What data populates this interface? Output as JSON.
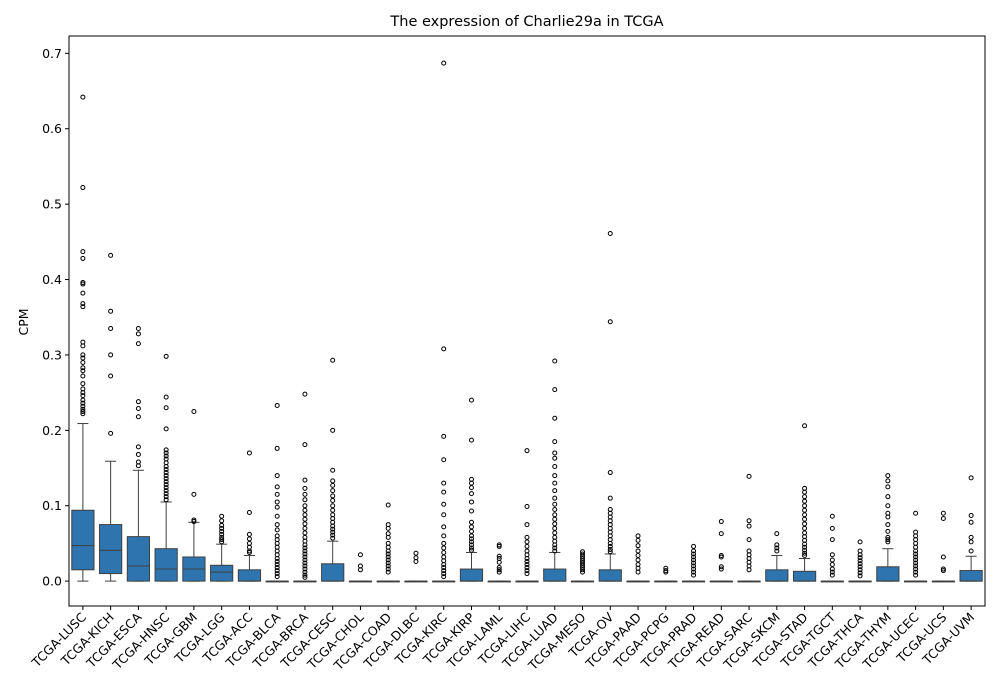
{
  "chart_data": {
    "type": "box",
    "title": "The expression of Charlie29a in TCGA",
    "xlabel": "",
    "ylabel": "CPM",
    "ylim": [
      -0.033,
      0.723
    ],
    "yticks": [
      0.0,
      0.1,
      0.2,
      0.3,
      0.4,
      0.5,
      0.6,
      0.7
    ],
    "grid": false,
    "box_color": "#2e75b0",
    "series": [
      {
        "name": "TCGA-LUSC",
        "q1": 0.015,
        "median": 0.047,
        "q3": 0.094,
        "whisker_low": 0.0,
        "whisker_high": 0.209,
        "outliers": [
          0.642,
          0.522,
          0.437,
          0.428,
          0.396,
          0.394,
          0.382,
          0.368,
          0.364,
          0.317,
          0.312,
          0.3,
          0.296,
          0.29,
          0.283,
          0.279,
          0.272,
          0.262,
          0.255,
          0.25,
          0.246,
          0.24,
          0.236,
          0.232,
          0.228,
          0.225,
          0.222
        ]
      },
      {
        "name": "TCGA-KICH",
        "q1": 0.01,
        "median": 0.041,
        "q3": 0.075,
        "whisker_low": 0.0,
        "whisker_high": 0.159,
        "outliers": [
          0.432,
          0.358,
          0.335,
          0.3,
          0.272,
          0.196
        ]
      },
      {
        "name": "TCGA-ESCA",
        "q1": 0.0,
        "median": 0.02,
        "q3": 0.059,
        "whisker_low": 0.0,
        "whisker_high": 0.147,
        "outliers": [
          0.335,
          0.328,
          0.315,
          0.238,
          0.229,
          0.218,
          0.178,
          0.168,
          0.158,
          0.153
        ]
      },
      {
        "name": "TCGA-HNSC",
        "q1": 0.0,
        "median": 0.016,
        "q3": 0.043,
        "whisker_low": 0.0,
        "whisker_high": 0.105,
        "outliers": [
          0.298,
          0.244,
          0.23,
          0.202,
          0.174,
          0.17,
          0.166,
          0.162,
          0.157,
          0.152,
          0.148,
          0.144,
          0.14,
          0.136,
          0.132,
          0.128,
          0.124,
          0.12,
          0.116,
          0.112,
          0.108
        ]
      },
      {
        "name": "TCGA-GBM",
        "q1": 0.0,
        "median": 0.016,
        "q3": 0.032,
        "whisker_low": 0.0,
        "whisker_high": 0.078,
        "outliers": [
          0.225,
          0.115,
          0.081,
          0.079
        ]
      },
      {
        "name": "TCGA-LGG",
        "q1": 0.0,
        "median": 0.012,
        "q3": 0.021,
        "whisker_low": 0.0,
        "whisker_high": 0.049,
        "outliers": [
          0.086,
          0.08,
          0.074,
          0.07,
          0.066,
          0.062,
          0.058,
          0.055,
          0.052
        ]
      },
      {
        "name": "TCGA-ACC",
        "q1": 0.0,
        "median": 0.0,
        "q3": 0.015,
        "whisker_low": 0.0,
        "whisker_high": 0.034,
        "outliers": [
          0.17,
          0.091,
          0.062,
          0.056,
          0.05,
          0.045,
          0.04,
          0.038
        ]
      },
      {
        "name": "TCGA-BLCA",
        "q1": 0.0,
        "median": 0.0,
        "q3": 0.0,
        "whisker_low": 0.0,
        "whisker_high": 0.0,
        "outliers": [
          0.233,
          0.176,
          0.14,
          0.125,
          0.115,
          0.105,
          0.098,
          0.086,
          0.075,
          0.068,
          0.06,
          0.055,
          0.05,
          0.045,
          0.04,
          0.035,
          0.03,
          0.026,
          0.022,
          0.018,
          0.014,
          0.01,
          0.006
        ]
      },
      {
        "name": "TCGA-BRCA",
        "q1": 0.0,
        "median": 0.0,
        "q3": 0.0,
        "whisker_low": 0.0,
        "whisker_high": 0.0,
        "outliers": [
          0.248,
          0.181,
          0.134,
          0.123,
          0.115,
          0.108,
          0.1,
          0.094,
          0.088,
          0.082,
          0.076,
          0.07,
          0.064,
          0.058,
          0.053,
          0.048,
          0.044,
          0.04,
          0.036,
          0.032,
          0.028,
          0.024,
          0.02,
          0.016,
          0.012,
          0.008,
          0.005
        ]
      },
      {
        "name": "TCGA-CESC",
        "q1": 0.0,
        "median": 0.0,
        "q3": 0.023,
        "whisker_low": 0.0,
        "whisker_high": 0.053,
        "outliers": [
          0.293,
          0.2,
          0.147,
          0.133,
          0.127,
          0.12,
          0.113,
          0.107,
          0.1,
          0.094,
          0.088,
          0.083,
          0.078,
          0.073,
          0.069,
          0.065,
          0.061,
          0.057
        ]
      },
      {
        "name": "TCGA-CHOL",
        "q1": 0.0,
        "median": 0.0,
        "q3": 0.0,
        "whisker_low": 0.0,
        "whisker_high": 0.0,
        "outliers": [
          0.035,
          0.02,
          0.015
        ]
      },
      {
        "name": "TCGA-COAD",
        "q1": 0.0,
        "median": 0.0,
        "q3": 0.0,
        "whisker_low": 0.0,
        "whisker_high": 0.0,
        "outliers": [
          0.101,
          0.075,
          0.07,
          0.063,
          0.058,
          0.05,
          0.045,
          0.04,
          0.036,
          0.032,
          0.028,
          0.024,
          0.02,
          0.016,
          0.012
        ]
      },
      {
        "name": "TCGA-DLBC",
        "q1": 0.0,
        "median": 0.0,
        "q3": 0.0,
        "whisker_low": 0.0,
        "whisker_high": 0.0,
        "outliers": [
          0.037,
          0.031,
          0.026
        ]
      },
      {
        "name": "TCGA-KIRC",
        "q1": 0.0,
        "median": 0.0,
        "q3": 0.0,
        "whisker_low": 0.0,
        "whisker_high": 0.0,
        "outliers": [
          0.687,
          0.308,
          0.192,
          0.161,
          0.13,
          0.118,
          0.102,
          0.088,
          0.072,
          0.06,
          0.05,
          0.044,
          0.038,
          0.032,
          0.027,
          0.022,
          0.018,
          0.014,
          0.01,
          0.006
        ]
      },
      {
        "name": "TCGA-KIRP",
        "q1": 0.0,
        "median": 0.0,
        "q3": 0.016,
        "whisker_low": 0.0,
        "whisker_high": 0.038,
        "outliers": [
          0.24,
          0.187,
          0.135,
          0.13,
          0.124,
          0.116,
          0.105,
          0.093,
          0.078,
          0.072,
          0.066,
          0.06,
          0.056,
          0.052,
          0.048,
          0.044,
          0.041
        ]
      },
      {
        "name": "TCGA-LAML",
        "q1": 0.0,
        "median": 0.0,
        "q3": 0.0,
        "whisker_low": 0.0,
        "whisker_high": 0.0,
        "outliers": [
          0.048,
          0.046,
          0.033,
          0.03,
          0.025,
          0.018,
          0.015,
          0.012
        ]
      },
      {
        "name": "TCGA-LIHC",
        "q1": 0.0,
        "median": 0.0,
        "q3": 0.0,
        "whisker_low": 0.0,
        "whisker_high": 0.0,
        "outliers": [
          0.173,
          0.099,
          0.075,
          0.058,
          0.052,
          0.046,
          0.04,
          0.035,
          0.03,
          0.026,
          0.022,
          0.018,
          0.014,
          0.01
        ]
      },
      {
        "name": "TCGA-LUAD",
        "q1": 0.0,
        "median": 0.0,
        "q3": 0.016,
        "whisker_low": 0.0,
        "whisker_high": 0.038,
        "outliers": [
          0.292,
          0.254,
          0.216,
          0.185,
          0.17,
          0.163,
          0.152,
          0.14,
          0.13,
          0.12,
          0.11,
          0.102,
          0.095,
          0.088,
          0.082,
          0.076,
          0.07,
          0.064,
          0.058,
          0.053,
          0.048,
          0.044,
          0.04
        ]
      },
      {
        "name": "TCGA-MESO",
        "q1": 0.0,
        "median": 0.0,
        "q3": 0.0,
        "whisker_low": 0.0,
        "whisker_high": 0.0,
        "outliers": [
          0.039,
          0.036,
          0.033,
          0.03,
          0.027,
          0.024,
          0.021,
          0.018,
          0.015,
          0.012
        ]
      },
      {
        "name": "TCGA-OV",
        "q1": 0.0,
        "median": 0.0,
        "q3": 0.015,
        "whisker_low": 0.0,
        "whisker_high": 0.036,
        "outliers": [
          0.461,
          0.344,
          0.144,
          0.11,
          0.095,
          0.09,
          0.085,
          0.08,
          0.075,
          0.07,
          0.065,
          0.06,
          0.055,
          0.05,
          0.046,
          0.042,
          0.039
        ]
      },
      {
        "name": "TCGA-PAAD",
        "q1": 0.0,
        "median": 0.0,
        "q3": 0.0,
        "whisker_low": 0.0,
        "whisker_high": 0.0,
        "outliers": [
          0.06,
          0.054,
          0.047,
          0.04,
          0.034,
          0.028,
          0.022,
          0.017,
          0.012
        ]
      },
      {
        "name": "TCGA-PCPG",
        "q1": 0.0,
        "median": 0.0,
        "q3": 0.0,
        "whisker_low": 0.0,
        "whisker_high": 0.0,
        "outliers": [
          0.017,
          0.014,
          0.012
        ]
      },
      {
        "name": "TCGA-PRAD",
        "q1": 0.0,
        "median": 0.0,
        "q3": 0.0,
        "whisker_low": 0.0,
        "whisker_high": 0.0,
        "outliers": [
          0.046,
          0.04,
          0.036,
          0.032,
          0.028,
          0.024,
          0.02,
          0.016,
          0.012,
          0.008
        ]
      },
      {
        "name": "TCGA-READ",
        "q1": 0.0,
        "median": 0.0,
        "q3": 0.0,
        "whisker_low": 0.0,
        "whisker_high": 0.0,
        "outliers": [
          0.079,
          0.063,
          0.034,
          0.032,
          0.019,
          0.016
        ]
      },
      {
        "name": "TCGA-SARC",
        "q1": 0.0,
        "median": 0.0,
        "q3": 0.0,
        "whisker_low": 0.0,
        "whisker_high": 0.0,
        "outliers": [
          0.139,
          0.08,
          0.073,
          0.055,
          0.04,
          0.035,
          0.03,
          0.025,
          0.02,
          0.015
        ]
      },
      {
        "name": "TCGA-SKCM",
        "q1": 0.0,
        "median": 0.0,
        "q3": 0.015,
        "whisker_low": 0.0,
        "whisker_high": 0.034,
        "outliers": [
          0.063,
          0.048,
          0.044,
          0.04
        ]
      },
      {
        "name": "TCGA-STAD",
        "q1": 0.0,
        "median": 0.0,
        "q3": 0.013,
        "whisker_low": 0.0,
        "whisker_high": 0.03,
        "outliers": [
          0.206,
          0.123,
          0.118,
          0.112,
          0.106,
          0.1,
          0.094,
          0.088,
          0.082,
          0.076,
          0.07,
          0.064,
          0.059,
          0.054,
          0.049,
          0.045,
          0.041,
          0.037,
          0.034
        ]
      },
      {
        "name": "TCGA-TGCT",
        "q1": 0.0,
        "median": 0.0,
        "q3": 0.0,
        "whisker_low": 0.0,
        "whisker_high": 0.0,
        "outliers": [
          0.086,
          0.07,
          0.055,
          0.035,
          0.028,
          0.022,
          0.016,
          0.012,
          0.008
        ]
      },
      {
        "name": "TCGA-THCA",
        "q1": 0.0,
        "median": 0.0,
        "q3": 0.0,
        "whisker_low": 0.0,
        "whisker_high": 0.0,
        "outliers": [
          0.052,
          0.04,
          0.035,
          0.031,
          0.027,
          0.023,
          0.019,
          0.015,
          0.011,
          0.007
        ]
      },
      {
        "name": "TCGA-THYM",
        "q1": 0.0,
        "median": 0.0,
        "q3": 0.019,
        "whisker_low": 0.0,
        "whisker_high": 0.043,
        "outliers": [
          0.14,
          0.133,
          0.125,
          0.112,
          0.1,
          0.09,
          0.085,
          0.075,
          0.066,
          0.058,
          0.055,
          0.052
        ]
      },
      {
        "name": "TCGA-UCEC",
        "q1": 0.0,
        "median": 0.0,
        "q3": 0.0,
        "whisker_low": 0.0,
        "whisker_high": 0.0,
        "outliers": [
          0.09,
          0.065,
          0.06,
          0.055,
          0.05,
          0.045,
          0.04,
          0.036,
          0.032,
          0.028,
          0.024,
          0.02,
          0.016,
          0.012,
          0.008
        ]
      },
      {
        "name": "TCGA-UCS",
        "q1": 0.0,
        "median": 0.0,
        "q3": 0.0,
        "whisker_low": 0.0,
        "whisker_high": 0.0,
        "outliers": [
          0.09,
          0.083,
          0.032,
          0.016,
          0.014
        ]
      },
      {
        "name": "TCGA-UVM",
        "q1": 0.0,
        "median": 0.0,
        "q3": 0.014,
        "whisker_low": 0.0,
        "whisker_high": 0.033,
        "outliers": [
          0.137,
          0.087,
          0.078,
          0.058,
          0.052,
          0.04
        ]
      }
    ]
  }
}
